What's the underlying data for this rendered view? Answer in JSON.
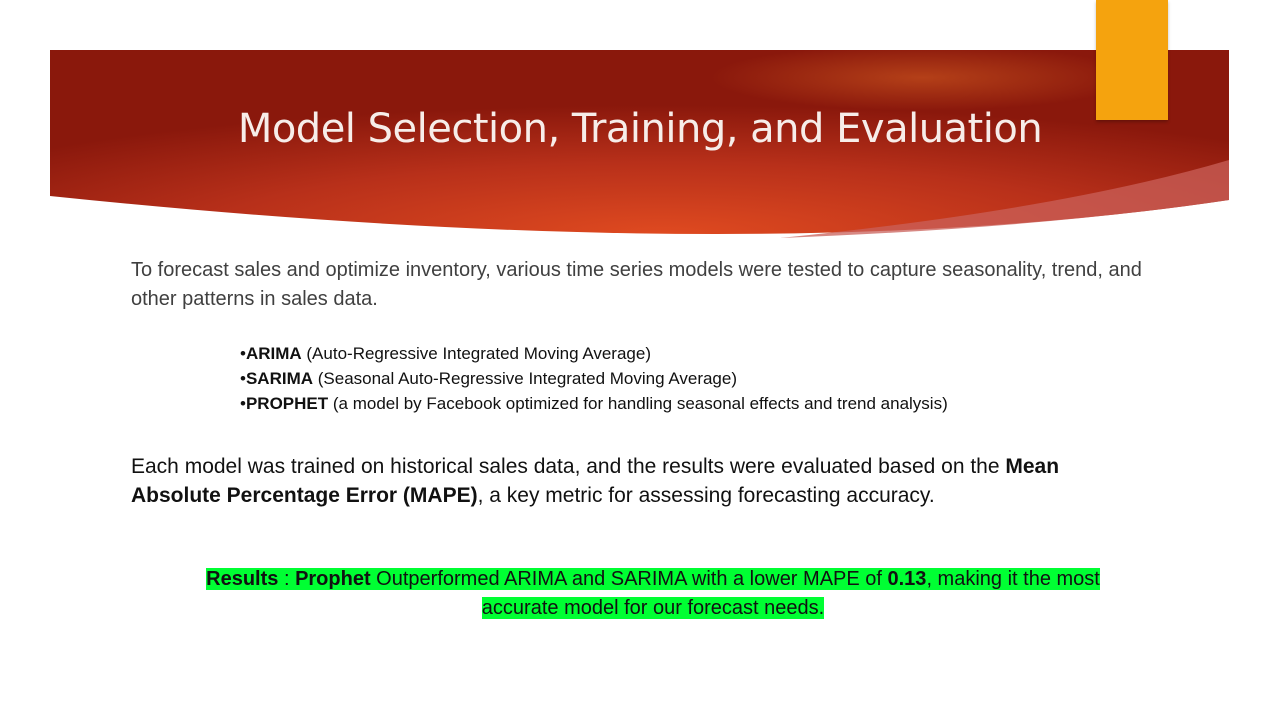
{
  "slide": {
    "title": "Model Selection, Training, and Evaluation",
    "intro": "To forecast sales and optimize inventory, various time series models were tested to capture seasonality, trend, and other patterns in sales data.",
    "models": [
      {
        "bullet": "•",
        "name": "ARIMA",
        "desc": " (Auto-Regressive Integrated Moving Average)"
      },
      {
        "bullet": "•",
        "name": "SARIMA",
        "desc": " (Seasonal Auto-Regressive Integrated Moving Average)"
      },
      {
        "bullet": "•",
        "name": "PROPHET",
        "desc": " (a model by Facebook optimized for handling seasonal effects and trend analysis)"
      }
    ],
    "evaluation": {
      "text": "Each model was trained on historical sales data, and the results were evaluated based on the ",
      "metric": "Mean Absolute Percentage Error (MAPE)",
      "tail": ", a key metric for assessing forecasting accuracy."
    },
    "results": {
      "label": "Results",
      "sep": " :  ",
      "winner": "Prophet",
      "text": " Outperformed ARIMA and SARIMA with a lower MAPE of ",
      "value": "0.13",
      "tail_line1": ", making it the most ",
      "line2": "accurate model for our forecast needs."
    }
  },
  "colors": {
    "banner_dark": "#8e1a0c",
    "banner_mid": "#d8431f",
    "accent_tab": "#f5a30e",
    "highlight": "#00ff33"
  }
}
